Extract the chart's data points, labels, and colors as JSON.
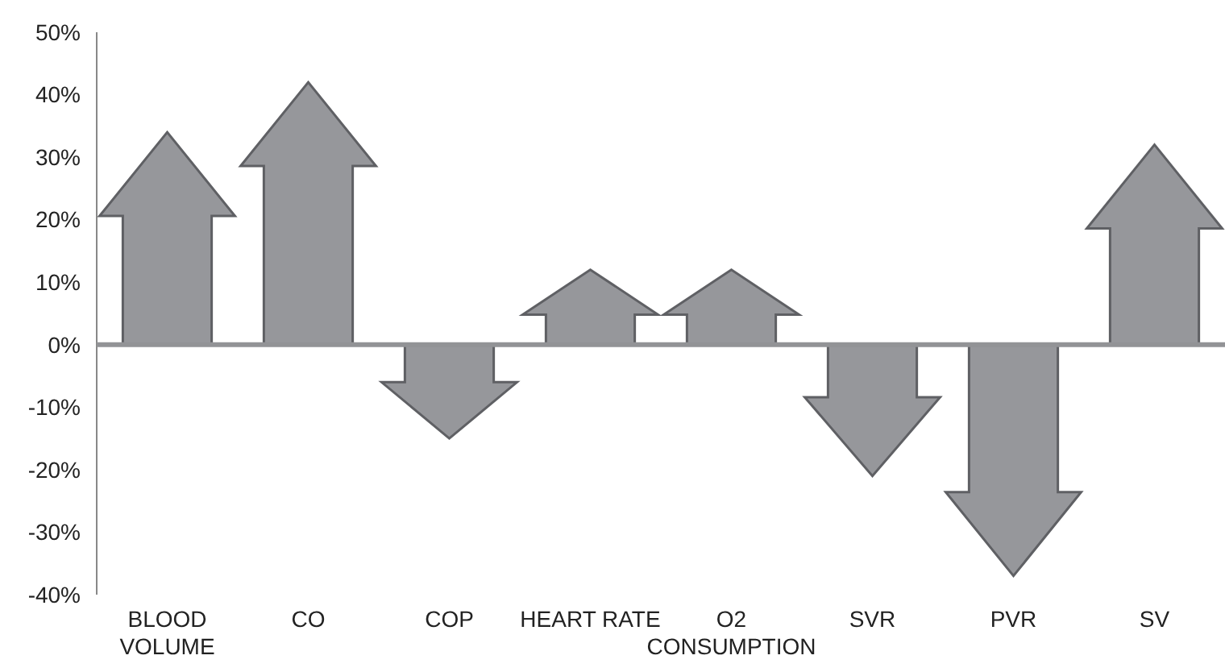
{
  "chart_data": {
    "type": "bar",
    "categories": [
      "BLOOD VOLUME",
      "CO",
      "COP",
      "HEART RATE",
      "O2 CONSUMPTION",
      "SVR",
      "PVR",
      "SV"
    ],
    "values": [
      34,
      42,
      -15,
      12,
      12,
      -21,
      -37,
      32
    ],
    "color": "#96979b",
    "ylim": [
      -40,
      50
    ],
    "yticks": [
      {
        "value": -40,
        "label": "-40%"
      },
      {
        "value": -30,
        "label": "-30%"
      },
      {
        "value": -20,
        "label": "-20%"
      },
      {
        "value": -10,
        "label": "-10%"
      },
      {
        "value": 0,
        "label": "0%"
      },
      {
        "value": 10,
        "label": "10%"
      },
      {
        "value": 20,
        "label": "20%"
      },
      {
        "value": 30,
        "label": "30%"
      },
      {
        "value": 40,
        "label": "40%"
      },
      {
        "value": 50,
        "label": "50%"
      }
    ]
  }
}
